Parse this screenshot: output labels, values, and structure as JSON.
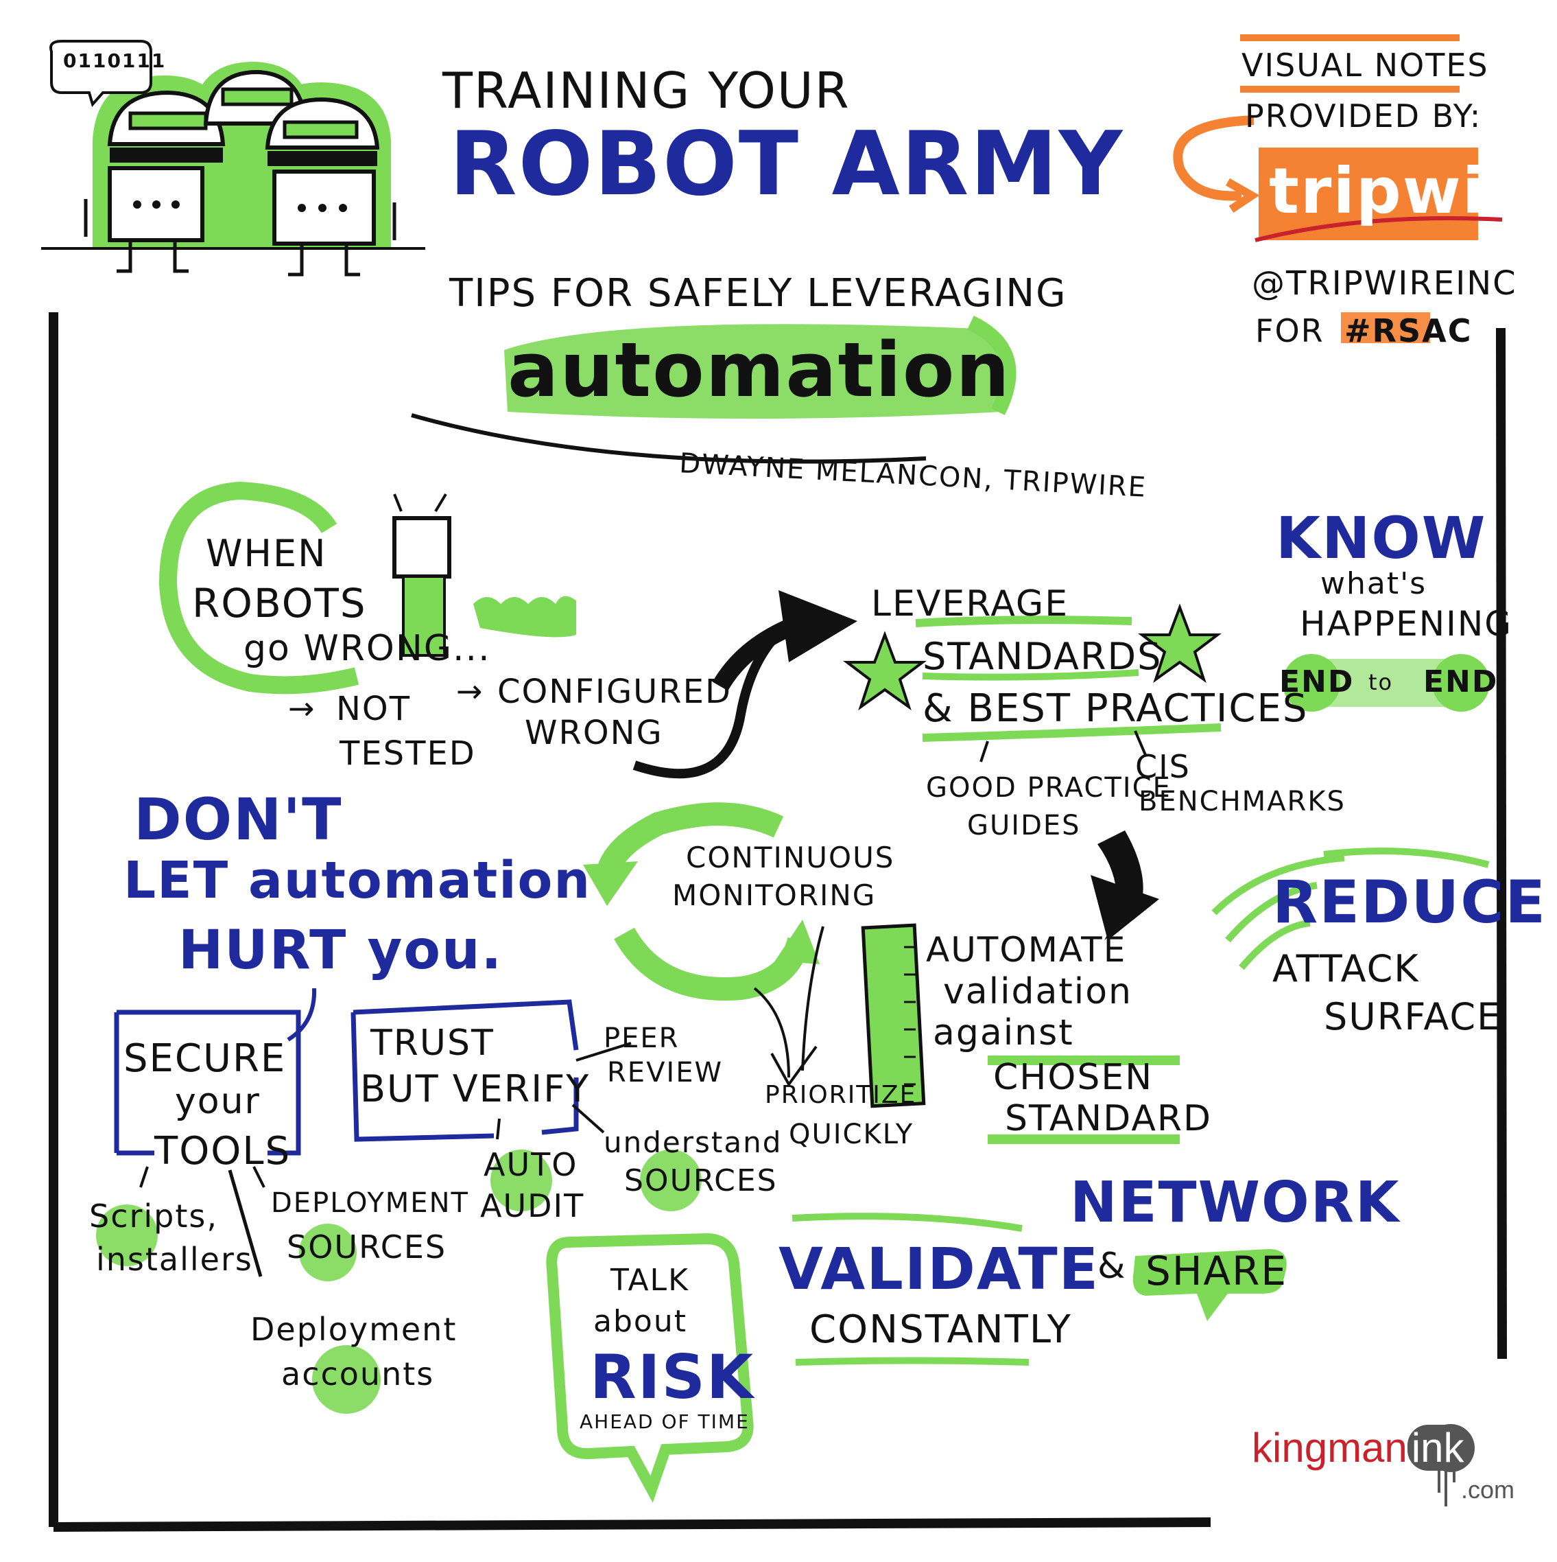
{
  "header": {
    "binary_bubble": "0110111",
    "title_line1": "TRAINING YOUR",
    "title_line2": "ROBOT ARMY",
    "title_line3": "TIPS FOR SAFELY LEVERAGING",
    "title_line4": "automation",
    "speaker": "DWAYNE MELANCON, TRIPWIRE"
  },
  "sponsor": {
    "line1": "VISUAL NOTES",
    "line2": "PROVIDED BY:",
    "logo": "tripwire",
    "handle": "@TRIPWIREINC",
    "for_label": "FOR",
    "hashtag": "#RSAC"
  },
  "robots_wrong": {
    "line1": "WHEN",
    "line2": "ROBOTS",
    "line3": "go WRONG...",
    "item1_line1": "NOT",
    "item1_line2": "TESTED",
    "item2_line1": "CONFIGURED",
    "item2_line2": "WRONG"
  },
  "leverage": {
    "line1": "LEVERAGE",
    "line2": "STANDARDS",
    "line3": "& BEST PRACTICES",
    "sub1_line1": "GOOD PRACTICE",
    "sub1_line2": "GUIDES",
    "sub2_line1": "CIS",
    "sub2_line2": "BENCHMARKS"
  },
  "know": {
    "line1": "KNOW",
    "line2": "what's",
    "line3": "HAPPENING",
    "end_left": "END",
    "to": "to",
    "end_right": "END"
  },
  "dont": {
    "line1": "DON'T",
    "line2": "LET automation",
    "line3": "HURT you."
  },
  "continuous": {
    "line1": "CONTINUOUS",
    "line2": "MONITORING",
    "prioritize1": "PRIORITIZE",
    "prioritize2": "QUICKLY"
  },
  "automate": {
    "line1": "AUTOMATE",
    "line2": "validation",
    "line3": "against",
    "line4": "CHOSEN",
    "line5": "STANDARD"
  },
  "reduce": {
    "line1": "REDUCE",
    "line2": "ATTACK",
    "line3": "SURFACE"
  },
  "secure": {
    "line1": "SECURE",
    "line2": "your",
    "line3": "TOOLS",
    "s1_line1": "Scripts,",
    "s1_line2": "installers",
    "s2_line1": "DEPLOYMENT",
    "s2_line2": "SOURCES",
    "s3_line1": "Deployment",
    "s3_line2": "accounts"
  },
  "trust": {
    "line1": "TRUST",
    "line2": "BUT VERIFY",
    "peer1": "PEER",
    "peer2": "REVIEW",
    "auto1": "AUTO",
    "auto2": "AUDIT",
    "understand1": "understand",
    "understand2": "SOURCES"
  },
  "talk": {
    "line1": "TALK",
    "line2": "about",
    "line3": "RISK",
    "line4": "AHEAD OF TIME"
  },
  "validate": {
    "line1": "VALIDATE",
    "line2": "CONSTANTLY"
  },
  "network": {
    "line1": "NETWORK",
    "amp": "&",
    "line2": "SHARE"
  },
  "footer": {
    "brand1": "kingman",
    "brand2": "ink",
    "brand3": ".com"
  },
  "colors": {
    "green": "#7ed957",
    "blue": "#1f2a9c",
    "orange": "#f58232",
    "ink": "#111111",
    "red": "#c8232c"
  }
}
